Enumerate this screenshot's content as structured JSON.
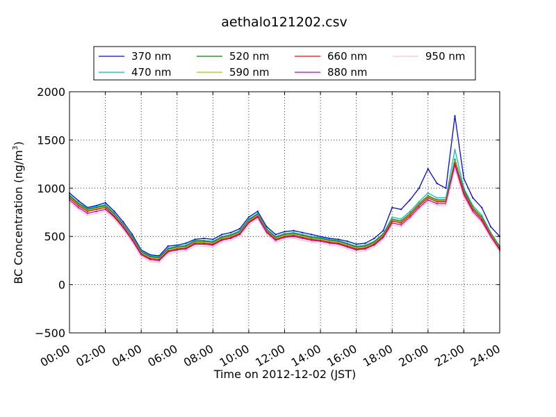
{
  "chart_data": {
    "type": "line",
    "title": "aethalo121202.csv",
    "xlabel": "Time on 2012-12-02 (JST)",
    "ylabel": "BC Concentration (ng/m",
    "ylabel_sup": "3",
    "ylabel_close": ")",
    "xlim": [
      "00:00",
      "24:00"
    ],
    "ylim": [
      -500,
      2000
    ],
    "grid": true,
    "legend_placement": "top-center, 4 columns",
    "x_ticks": [
      "00:00",
      "02:00",
      "04:00",
      "06:00",
      "08:00",
      "10:00",
      "12:00",
      "14:00",
      "16:00",
      "18:00",
      "20:00",
      "22:00",
      "24:00"
    ],
    "y_ticks": [
      "−500",
      "0",
      "500",
      "1000",
      "1500",
      "2000"
    ],
    "x": [
      "00:00",
      "00:30",
      "01:00",
      "01:30",
      "02:00",
      "02:30",
      "03:00",
      "03:30",
      "04:00",
      "04:30",
      "05:00",
      "05:30",
      "06:00",
      "06:30",
      "07:00",
      "07:30",
      "08:00",
      "08:30",
      "09:00",
      "09:30",
      "10:00",
      "10:30",
      "11:00",
      "11:30",
      "12:00",
      "12:30",
      "13:00",
      "13:30",
      "14:00",
      "14:30",
      "15:00",
      "15:30",
      "16:00",
      "16:30",
      "17:00",
      "17:30",
      "18:00",
      "18:30",
      "19:00",
      "19:30",
      "20:00",
      "20:30",
      "21:00",
      "21:30",
      "22:00",
      "22:30",
      "23:00",
      "23:30",
      "24:00"
    ],
    "series": [
      {
        "name": "370 nm",
        "color": "#0000ff",
        "values": [
          950,
          870,
          800,
          820,
          850,
          760,
          650,
          520,
          360,
          310,
          300,
          400,
          410,
          430,
          470,
          480,
          470,
          520,
          540,
          580,
          700,
          760,
          600,
          520,
          550,
          560,
          540,
          520,
          500,
          480,
          470,
          450,
          420,
          430,
          480,
          560,
          800,
          780,
          880,
          1000,
          1200,
          1050,
          1000,
          1750,
          1100,
          900,
          800,
          600,
          500
        ]
      },
      {
        "name": "470 nm",
        "color": "#00bfbf",
        "values": [
          930,
          850,
          790,
          810,
          830,
          740,
          630,
          500,
          350,
          300,
          290,
          380,
          400,
          410,
          460,
          460,
          450,
          500,
          520,
          560,
          680,
          740,
          580,
          500,
          530,
          540,
          520,
          500,
          490,
          470,
          460,
          430,
          400,
          410,
          450,
          530,
          700,
          680,
          760,
          860,
          950,
          900,
          900,
          1400,
          1000,
          820,
          720,
          540,
          400
        ]
      },
      {
        "name": "520 nm",
        "color": "#008000",
        "values": [
          920,
          840,
          780,
          800,
          820,
          730,
          620,
          490,
          340,
          290,
          280,
          370,
          390,
          400,
          450,
          450,
          440,
          490,
          510,
          550,
          670,
          730,
          570,
          490,
          520,
          530,
          510,
          490,
          480,
          460,
          450,
          420,
          390,
          400,
          440,
          520,
          680,
          660,
          740,
          840,
          920,
          880,
          880,
          1300,
          980,
          800,
          700,
          530,
          390
        ]
      },
      {
        "name": "590 nm",
        "color": "#bfbf00",
        "values": [
          910,
          830,
          770,
          790,
          810,
          720,
          610,
          480,
          330,
          280,
          270,
          360,
          380,
          390,
          440,
          440,
          430,
          480,
          500,
          540,
          660,
          720,
          560,
          480,
          510,
          520,
          500,
          480,
          470,
          450,
          440,
          410,
          380,
          390,
          430,
          510,
          670,
          650,
          730,
          830,
          910,
          870,
          870,
          1280,
          960,
          790,
          690,
          520,
          380
        ]
      },
      {
        "name": "660 nm",
        "color": "#ff0000",
        "values": [
          900,
          820,
          760,
          780,
          800,
          710,
          600,
          470,
          320,
          270,
          260,
          350,
          370,
          380,
          430,
          430,
          420,
          470,
          490,
          530,
          650,
          710,
          550,
          470,
          500,
          510,
          490,
          470,
          460,
          440,
          430,
          400,
          370,
          380,
          420,
          500,
          660,
          640,
          720,
          820,
          900,
          860,
          860,
          1260,
          950,
          780,
          680,
          510,
          370
        ]
      },
      {
        "name": "880 nm",
        "color": "#bf00bf",
        "values": [
          880,
          800,
          740,
          760,
          780,
          700,
          590,
          460,
          310,
          260,
          250,
          340,
          360,
          370,
          420,
          420,
          410,
          460,
          480,
          520,
          640,
          700,
          540,
          460,
          490,
          500,
          480,
          460,
          450,
          430,
          420,
          390,
          360,
          370,
          410,
          490,
          640,
          620,
          700,
          800,
          880,
          840,
          840,
          1240,
          930,
          760,
          660,
          500,
          360
        ]
      },
      {
        "name": "950 nm",
        "color": "#ffc0cb",
        "values": [
          860,
          780,
          720,
          740,
          760,
          680,
          570,
          440,
          290,
          240,
          230,
          320,
          340,
          350,
          400,
          400,
          390,
          440,
          460,
          500,
          620,
          680,
          520,
          440,
          470,
          480,
          460,
          440,
          430,
          410,
          400,
          370,
          340,
          350,
          390,
          470,
          620,
          600,
          680,
          780,
          860,
          820,
          820,
          1200,
          900,
          740,
          640,
          480,
          340
        ]
      }
    ]
  }
}
